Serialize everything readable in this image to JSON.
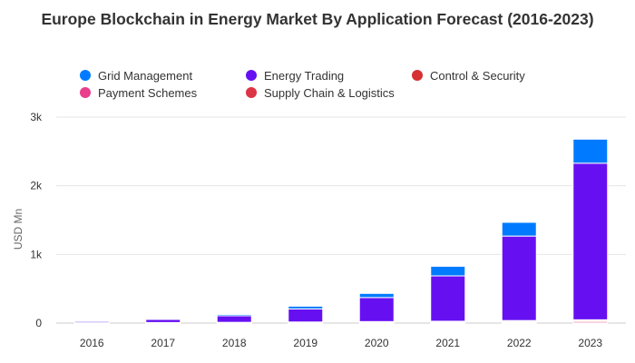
{
  "chart_data": {
    "type": "bar",
    "stacked": true,
    "title": "Europe Blockchain in Energy Market By Application Forecast (2016-2023)",
    "xlabel": "",
    "ylabel": "USD Mn",
    "categories": [
      "2016",
      "2017",
      "2018",
      "2019",
      "2020",
      "2021",
      "2022",
      "2023"
    ],
    "ylim": [
      0,
      3000
    ],
    "yticks": [
      {
        "value": 0,
        "label": "0"
      },
      {
        "value": 1000,
        "label": "1k"
      },
      {
        "value": 2000,
        "label": "2k"
      },
      {
        "value": 3000,
        "label": "3k"
      }
    ],
    "grid": true,
    "legend_position": "top",
    "series": [
      {
        "name": "Payment Schemes",
        "color": "#e83e8c",
        "values": [
          2,
          3,
          4,
          6,
          8,
          10,
          14,
          18
        ]
      },
      {
        "name": "Supply Chain & Logistics",
        "color": "#dc3545",
        "values": [
          2,
          3,
          4,
          6,
          8,
          10,
          14,
          18
        ]
      },
      {
        "name": "Control & Security",
        "color": "#d63031",
        "values": [
          1,
          2,
          3,
          4,
          6,
          7,
          9,
          12
        ]
      },
      {
        "name": "Energy Trading",
        "color": "#6610f2",
        "values": [
          20,
          45,
          95,
          190,
          350,
          660,
          1230,
          2280
        ]
      },
      {
        "name": "Grid Management",
        "color": "#007bff",
        "values": [
          5,
          10,
          20,
          40,
          60,
          140,
          200,
          350
        ]
      }
    ],
    "legend_order": [
      "Grid Management",
      "Energy Trading",
      "Control & Security",
      "Payment Schemes",
      "Supply Chain & Logistics"
    ]
  }
}
